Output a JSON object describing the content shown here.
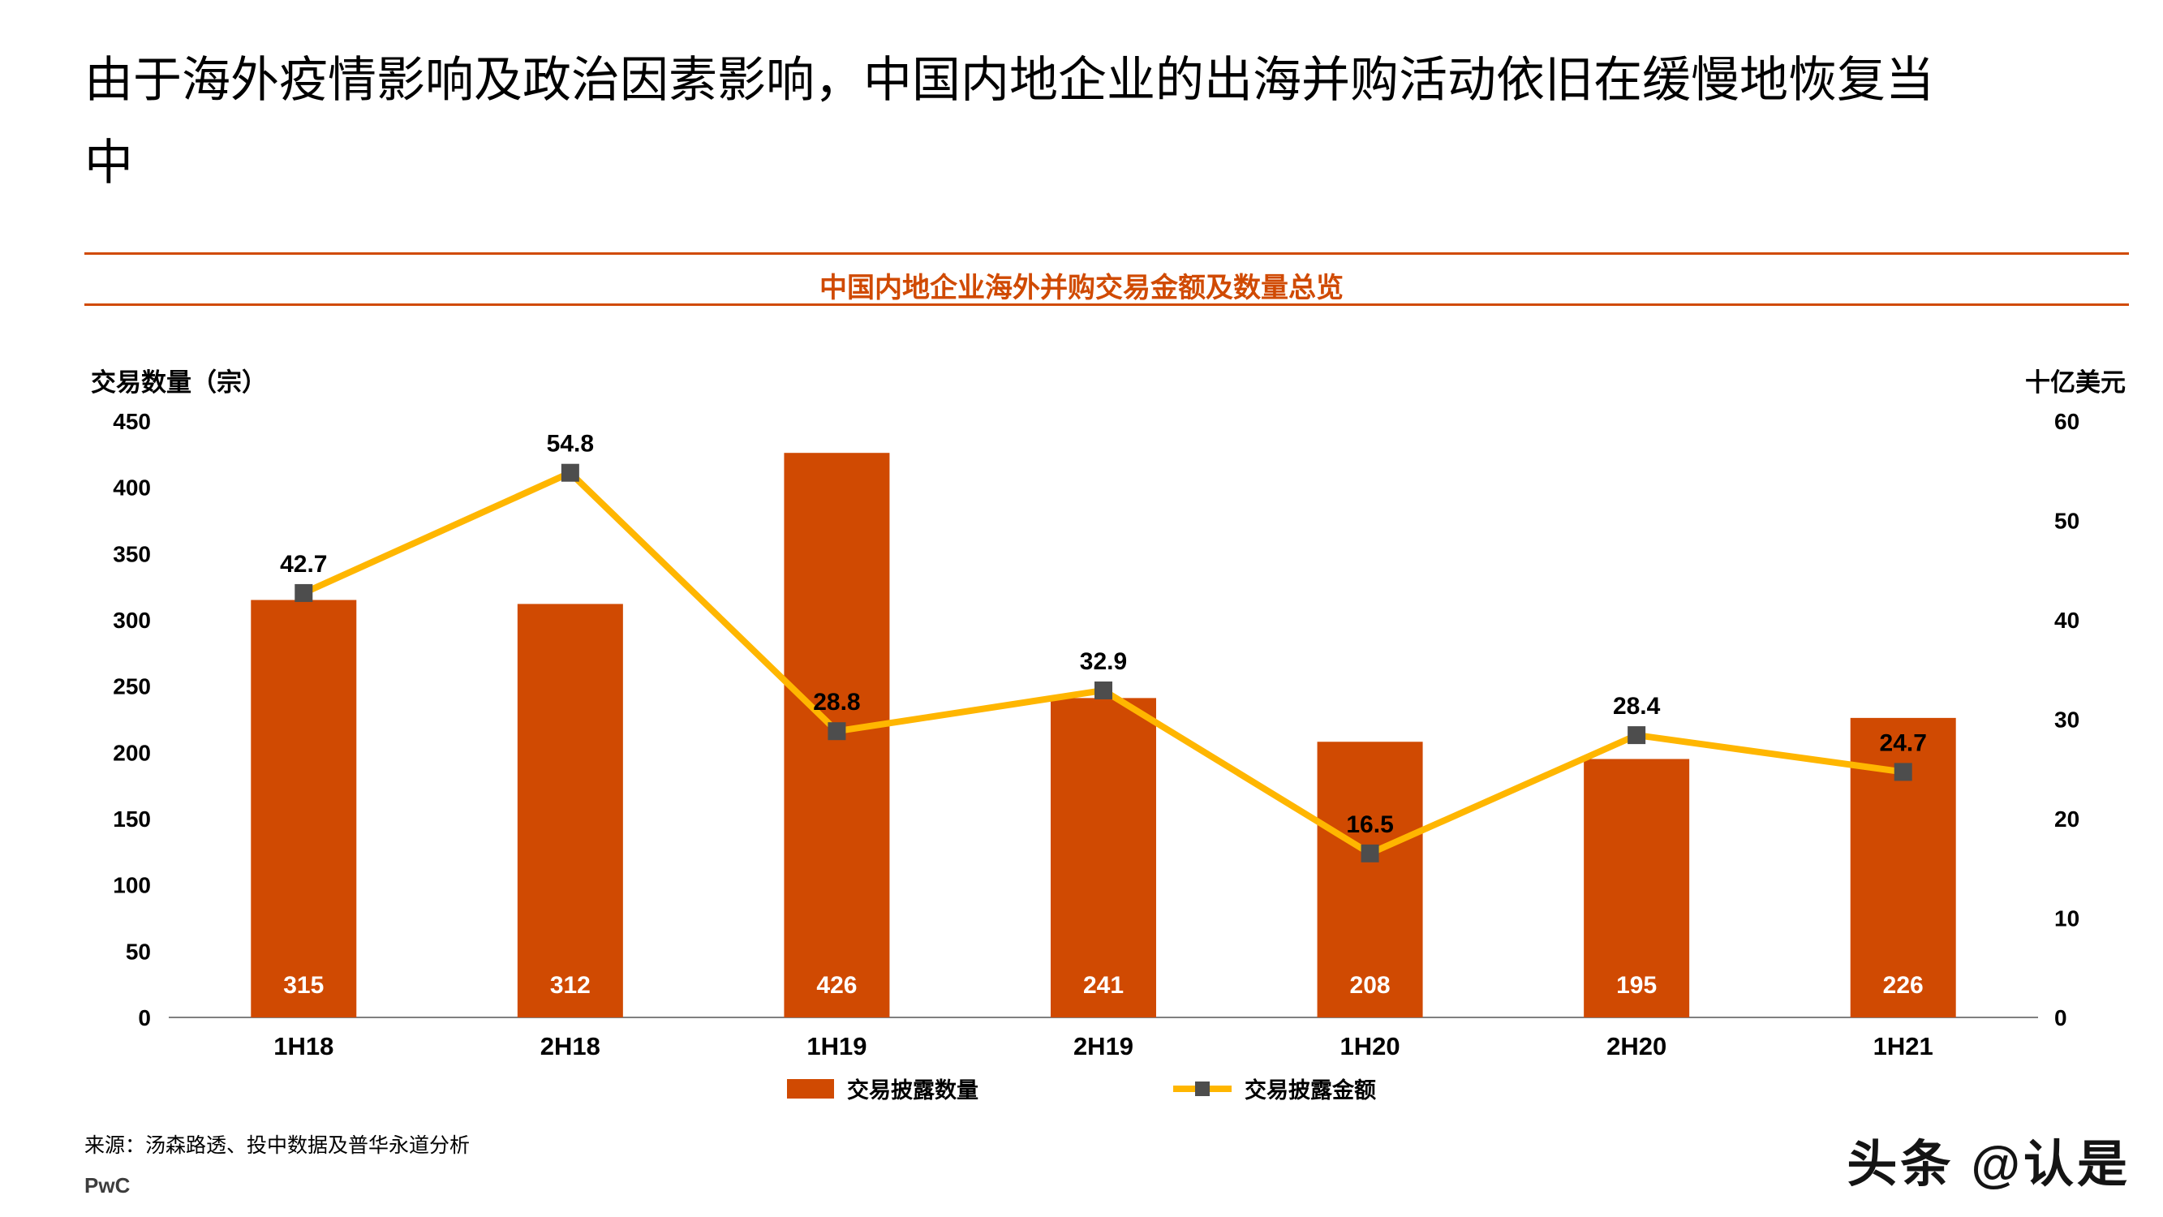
{
  "page": {
    "title": "由于海外疫情影响及政治因素影响，中国内地企业的出海并购活动依旧在缓慢地恢复当中",
    "source": "来源：汤森路透、投中数据及普华永道分析",
    "brand": "PwC",
    "watermark": "头条 @认是"
  },
  "chart_header": {
    "title": "中国内地企业海外并购交易金额及数量总览"
  },
  "colors": {
    "accent_orange": "#D04A02",
    "line_yellow": "#FFB600",
    "marker_gray": "#4D4D4D",
    "axis_line_gray": "#808080"
  },
  "chart_data": {
    "type": "bar+line combo",
    "categories": [
      "1H18",
      "2H18",
      "1H19",
      "2H19",
      "1H20",
      "2H20",
      "1H21"
    ],
    "series": [
      {
        "name": "交易披露数量",
        "type": "bar",
        "axis": "left",
        "unit": "宗",
        "values": [
          315,
          312,
          426,
          241,
          208,
          195,
          226
        ],
        "color": "#D04A02"
      },
      {
        "name": "交易披露金额",
        "type": "line",
        "axis": "right",
        "unit": "十亿美元",
        "values": [
          42.7,
          54.8,
          28.8,
          32.9,
          16.5,
          28.4,
          24.7
        ],
        "color": "#FFB600",
        "marker_color": "#4D4D4D"
      }
    ],
    "left_axis": {
      "label": "交易数量（宗）",
      "min": 0,
      "max": 450,
      "ticks": [
        450,
        400,
        350,
        300,
        250,
        200,
        150,
        100,
        50,
        0
      ]
    },
    "right_axis": {
      "label": "十亿美元",
      "min": 0,
      "max": 60,
      "ticks": [
        60,
        50,
        40,
        30,
        20,
        10,
        0
      ]
    },
    "legend": [
      "交易披露数量",
      "交易披露金额"
    ],
    "legend_position": "bottom",
    "grid": false
  }
}
